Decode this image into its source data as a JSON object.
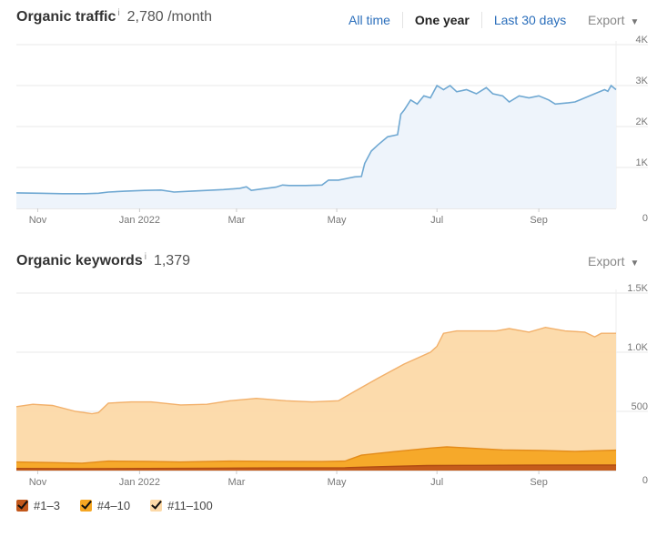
{
  "traffic": {
    "title": "Organic traffic",
    "info": "i",
    "value": "2,780 /month",
    "tabs": [
      {
        "label": "All time",
        "active": false
      },
      {
        "label": "One year",
        "active": true
      },
      {
        "label": "Last 30 days",
        "active": false
      }
    ],
    "export_label": "Export",
    "caret": "▼"
  },
  "keywords": {
    "title": "Organic keywords",
    "info": "i",
    "value": "1,379",
    "export_label": "Export",
    "caret": "▼"
  },
  "legend": [
    {
      "label": "#1–3",
      "color": "#c2571a"
    },
    {
      "label": "#4–10",
      "color": "#f5a623"
    },
    {
      "label": "#11–100",
      "color": "#fcd9a8"
    }
  ],
  "chart_data": [
    {
      "type": "area",
      "x_range_days": [
        0,
        365
      ],
      "ylim": [
        0,
        4000
      ],
      "y_ticks": [
        {
          "v": 0,
          "label": "0"
        },
        {
          "v": 1000,
          "label": "1K"
        },
        {
          "v": 2000,
          "label": "2K"
        },
        {
          "v": 3000,
          "label": "3K"
        },
        {
          "v": 4000,
          "label": "4K"
        }
      ],
      "x_ticks": [
        {
          "d": 13,
          "label": "Nov"
        },
        {
          "d": 75,
          "label": "Jan 2022"
        },
        {
          "d": 134,
          "label": "Mar"
        },
        {
          "d": 195,
          "label": "May"
        },
        {
          "d": 256,
          "label": "Jul"
        },
        {
          "d": 318,
          "label": "Sep"
        }
      ],
      "grid": true,
      "line_color": "#6fa8d2",
      "fill_color": "#eef4fb",
      "series": [
        {
          "points": [
            [
              0,
              380
            ],
            [
              14,
              370
            ],
            [
              28,
              360
            ],
            [
              42,
              360
            ],
            [
              50,
              370
            ],
            [
              56,
              400
            ],
            [
              66,
              420
            ],
            [
              78,
              440
            ],
            [
              88,
              450
            ],
            [
              96,
              400
            ],
            [
              106,
              420
            ],
            [
              116,
              440
            ],
            [
              126,
              460
            ],
            [
              136,
              490
            ],
            [
              140,
              530
            ],
            [
              143,
              440
            ],
            [
              150,
              480
            ],
            [
              158,
              520
            ],
            [
              162,
              570
            ],
            [
              166,
              560
            ],
            [
              176,
              560
            ],
            [
              186,
              570
            ],
            [
              190,
              690
            ],
            [
              196,
              690
            ],
            [
              206,
              770
            ],
            [
              210,
              780
            ],
            [
              212,
              1100
            ],
            [
              216,
              1400
            ],
            [
              220,
              1550
            ],
            [
              226,
              1750
            ],
            [
              232,
              1800
            ],
            [
              234,
              2300
            ],
            [
              236,
              2400
            ],
            [
              240,
              2650
            ],
            [
              244,
              2550
            ],
            [
              248,
              2750
            ],
            [
              252,
              2700
            ],
            [
              256,
              3000
            ],
            [
              260,
              2900
            ],
            [
              264,
              3000
            ],
            [
              268,
              2850
            ],
            [
              274,
              2900
            ],
            [
              280,
              2800
            ],
            [
              286,
              2950
            ],
            [
              290,
              2800
            ],
            [
              296,
              2750
            ],
            [
              300,
              2600
            ],
            [
              306,
              2750
            ],
            [
              312,
              2700
            ],
            [
              318,
              2750
            ],
            [
              324,
              2650
            ],
            [
              328,
              2550
            ],
            [
              336,
              2580
            ],
            [
              340,
              2600
            ],
            [
              346,
              2700
            ],
            [
              352,
              2800
            ],
            [
              358,
              2900
            ],
            [
              360,
              2860
            ],
            [
              362,
              3000
            ],
            [
              365,
              2900
            ]
          ]
        }
      ]
    },
    {
      "type": "area",
      "x_range_days": [
        0,
        365
      ],
      "ylim": [
        0,
        1500
      ],
      "y_ticks": [
        {
          "v": 0,
          "label": "0"
        },
        {
          "v": 500,
          "label": "500"
        },
        {
          "v": 1000,
          "label": "1.0K"
        },
        {
          "v": 1500,
          "label": "1.5K"
        }
      ],
      "x_ticks": [
        {
          "d": 13,
          "label": "Nov"
        },
        {
          "d": 75,
          "label": "Jan 2022"
        },
        {
          "d": 134,
          "label": "Mar"
        },
        {
          "d": 195,
          "label": "May"
        },
        {
          "d": 256,
          "label": "Jul"
        },
        {
          "d": 318,
          "label": "Sep"
        }
      ],
      "grid": true,
      "series": [
        {
          "name": "#11–100",
          "color": "#fcd9a8",
          "line": "#f2b06a",
          "points": [
            [
              0,
              540
            ],
            [
              10,
              560
            ],
            [
              22,
              550
            ],
            [
              36,
              500
            ],
            [
              46,
              480
            ],
            [
              50,
              490
            ],
            [
              56,
              570
            ],
            [
              70,
              580
            ],
            [
              82,
              580
            ],
            [
              100,
              555
            ],
            [
              116,
              560
            ],
            [
              130,
              590
            ],
            [
              146,
              610
            ],
            [
              164,
              590
            ],
            [
              180,
              580
            ],
            [
              196,
              590
            ],
            [
              206,
              670
            ],
            [
              220,
              780
            ],
            [
              236,
              900
            ],
            [
              252,
              1000
            ],
            [
              256,
              1050
            ],
            [
              260,
              1160
            ],
            [
              268,
              1180
            ],
            [
              280,
              1180
            ],
            [
              292,
              1180
            ],
            [
              300,
              1200
            ],
            [
              312,
              1170
            ],
            [
              322,
              1210
            ],
            [
              334,
              1180
            ],
            [
              346,
              1170
            ],
            [
              352,
              1130
            ],
            [
              356,
              1160
            ],
            [
              365,
              1160
            ]
          ]
        },
        {
          "name": "#4–10",
          "color": "#f5a623",
          "line": "#e38b1a",
          "points": [
            [
              0,
              72
            ],
            [
              20,
              68
            ],
            [
              40,
              62
            ],
            [
              56,
              80
            ],
            [
              80,
              78
            ],
            [
              100,
              72
            ],
            [
              130,
              80
            ],
            [
              160,
              78
            ],
            [
              186,
              76
            ],
            [
              200,
              80
            ],
            [
              210,
              130
            ],
            [
              230,
              160
            ],
            [
              252,
              190
            ],
            [
              262,
              200
            ],
            [
              276,
              190
            ],
            [
              296,
              175
            ],
            [
              320,
              170
            ],
            [
              340,
              162
            ],
            [
              365,
              172
            ]
          ]
        },
        {
          "name": "#1–3",
          "color": "#c2571a",
          "line": "#b04c12",
          "points": [
            [
              0,
              18
            ],
            [
              40,
              16
            ],
            [
              80,
              18
            ],
            [
              120,
              20
            ],
            [
              160,
              22
            ],
            [
              200,
              24
            ],
            [
              220,
              32
            ],
            [
              250,
              42
            ],
            [
              280,
              44
            ],
            [
              310,
              45
            ],
            [
              340,
              46
            ],
            [
              365,
              46
            ]
          ]
        }
      ]
    }
  ]
}
